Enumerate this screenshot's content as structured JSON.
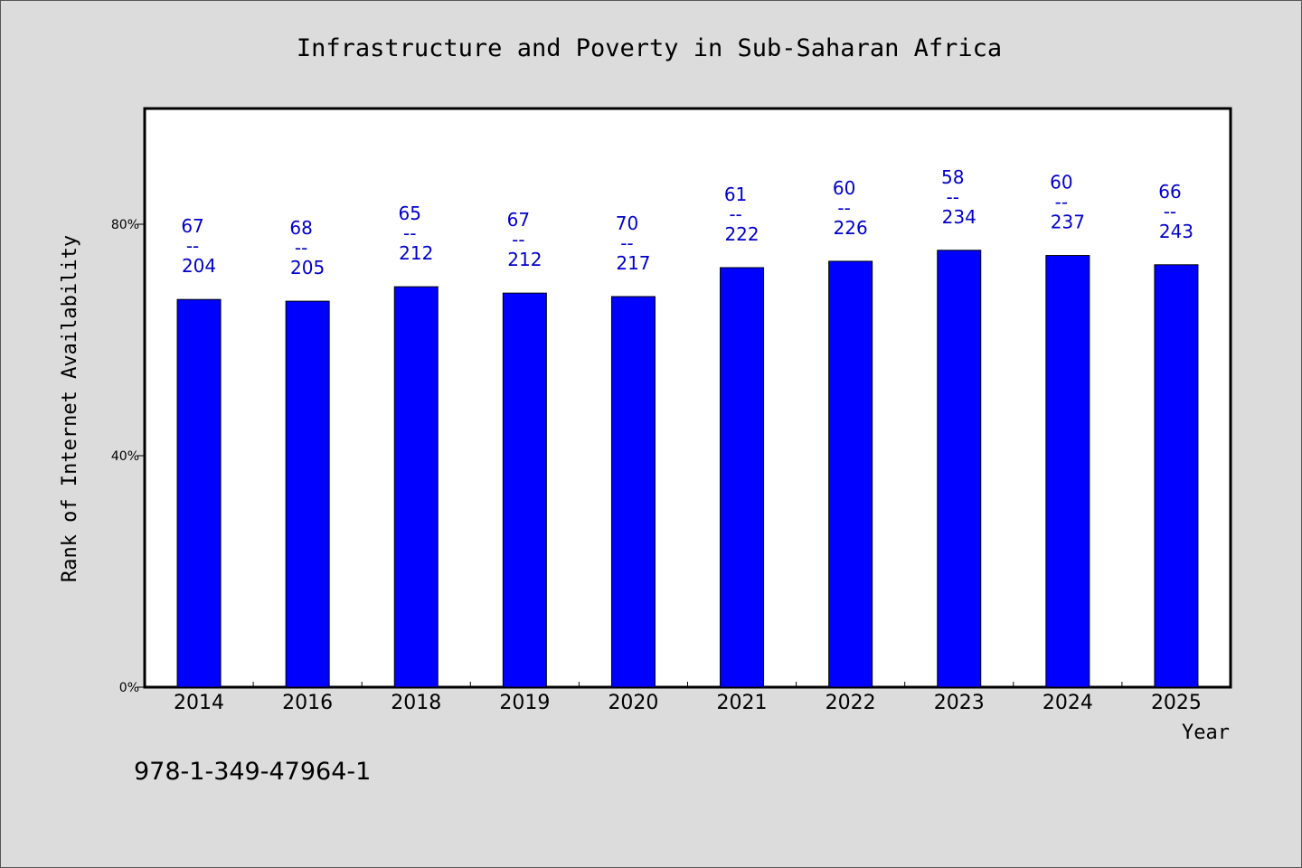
{
  "chart_data": {
    "type": "bar",
    "title": "Infrastructure and Poverty in Sub-Saharan Africa",
    "xlabel": "Year",
    "ylabel": "Rank of Internet Availability",
    "categories": [
      "2014",
      "2016",
      "2018",
      "2019",
      "2020",
      "2021",
      "2022",
      "2023",
      "2024",
      "2025"
    ],
    "values": [
      67,
      66.7,
      69.2,
      68.1,
      67.5,
      72.5,
      73.6,
      75.5,
      74.6,
      73.0
    ],
    "labels_top": [
      "67",
      "68",
      "65",
      "67",
      "70",
      "61",
      "60",
      "58",
      "60",
      "66"
    ],
    "labels_bottom": [
      "204",
      "205",
      "212",
      "212",
      "217",
      "222",
      "226",
      "234",
      "237",
      "243"
    ],
    "label_separator": "--",
    "ylim": [
      0,
      100
    ],
    "yticks": [
      0,
      40,
      80
    ],
    "ytick_labels": [
      "0%",
      "40%",
      "80%"
    ],
    "grid": false,
    "legend": false,
    "bar_color": "#0000ff",
    "data_label_color": "#0000cc",
    "plot_background": "#ffffff",
    "background": "#dcdcdc"
  },
  "annotation": {
    "identifier": "978-1-349-47964-1"
  }
}
